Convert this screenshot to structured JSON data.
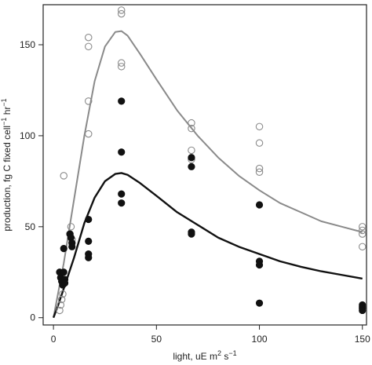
{
  "chart_data": {
    "type": "scatter",
    "xlabel": "light, uE m",
    "xlabel_sup1": "2",
    "xlabel_mid": " s",
    "xlabel_sup2": "−1",
    "ylabel_main": "production, fg C fixed cell",
    "ylabel_sup1": "−1",
    "ylabel_mid": " hr",
    "ylabel_sup2": "−1",
    "xlim": [
      -5,
      152
    ],
    "ylim": [
      -4,
      172
    ],
    "x_ticks": [
      0,
      50,
      100,
      150
    ],
    "x_tick_labels": [
      "0",
      "50",
      "100",
      "150"
    ],
    "y_ticks": [
      0,
      50,
      100,
      150
    ],
    "y_tick_labels": [
      "0",
      "50",
      "100",
      "150"
    ],
    "grid": false,
    "series": [
      {
        "marker": "open-circle",
        "color": "#8a8a8a",
        "points": [
          [
            3,
            4
          ],
          [
            3.5,
            7
          ],
          [
            4,
            10
          ],
          [
            4.5,
            13
          ],
          [
            5,
            78
          ],
          [
            8,
            46
          ],
          [
            8.5,
            50
          ],
          [
            9,
            43
          ],
          [
            17,
            154
          ],
          [
            17,
            149
          ],
          [
            17,
            119
          ],
          [
            17,
            101
          ],
          [
            33,
            169
          ],
          [
            33,
            167
          ],
          [
            33,
            140
          ],
          [
            33,
            138
          ],
          [
            67,
            107
          ],
          [
            67,
            104
          ],
          [
            67,
            92
          ],
          [
            67,
            87
          ],
          [
            100,
            105
          ],
          [
            100,
            96
          ],
          [
            100,
            82
          ],
          [
            100,
            80
          ],
          [
            150,
            50
          ],
          [
            150,
            48
          ],
          [
            150,
            46
          ],
          [
            150,
            39
          ]
        ],
        "curve": [
          [
            0,
            0
          ],
          [
            2,
            12
          ],
          [
            5,
            30
          ],
          [
            10,
            65
          ],
          [
            15,
            100
          ],
          [
            20,
            130
          ],
          [
            25,
            149
          ],
          [
            30,
            157
          ],
          [
            33,
            157.5
          ],
          [
            36,
            155
          ],
          [
            42,
            145
          ],
          [
            50,
            131
          ],
          [
            60,
            114
          ],
          [
            70,
            100
          ],
          [
            80,
            88
          ],
          [
            90,
            78
          ],
          [
            100,
            70
          ],
          [
            110,
            63
          ],
          [
            120,
            58
          ],
          [
            130,
            53
          ],
          [
            140,
            50
          ],
          [
            150,
            47
          ]
        ]
      },
      {
        "marker": "filled-circle",
        "color": "#111111",
        "points": [
          [
            3,
            25
          ],
          [
            3.5,
            22
          ],
          [
            4,
            20
          ],
          [
            4.5,
            18
          ],
          [
            5,
            38
          ],
          [
            5,
            25
          ],
          [
            5.5,
            21
          ],
          [
            5.5,
            19
          ],
          [
            8,
            46
          ],
          [
            8.5,
            44
          ],
          [
            9,
            41
          ],
          [
            9,
            39
          ],
          [
            17,
            54
          ],
          [
            17,
            42
          ],
          [
            17,
            35
          ],
          [
            17,
            33
          ],
          [
            33,
            119
          ],
          [
            33,
            91
          ],
          [
            33,
            68
          ],
          [
            33,
            63
          ],
          [
            67,
            88
          ],
          [
            67,
            83
          ],
          [
            67,
            47
          ],
          [
            67,
            46
          ],
          [
            100,
            62
          ],
          [
            100,
            31
          ],
          [
            100,
            29
          ],
          [
            100,
            8
          ],
          [
            150,
            7
          ],
          [
            150,
            6
          ],
          [
            150,
            5
          ],
          [
            150,
            4
          ]
        ],
        "curve": [
          [
            0,
            0
          ],
          [
            2,
            6
          ],
          [
            5,
            16
          ],
          [
            10,
            33
          ],
          [
            15,
            52
          ],
          [
            20,
            66
          ],
          [
            25,
            75
          ],
          [
            30,
            79
          ],
          [
            33,
            79.5
          ],
          [
            36,
            78.5
          ],
          [
            42,
            74
          ],
          [
            50,
            67
          ],
          [
            60,
            58
          ],
          [
            70,
            51
          ],
          [
            80,
            44
          ],
          [
            90,
            39
          ],
          [
            100,
            35
          ],
          [
            110,
            31
          ],
          [
            120,
            28
          ],
          [
            130,
            25.5
          ],
          [
            140,
            23.5
          ],
          [
            150,
            21.5
          ]
        ]
      }
    ]
  }
}
